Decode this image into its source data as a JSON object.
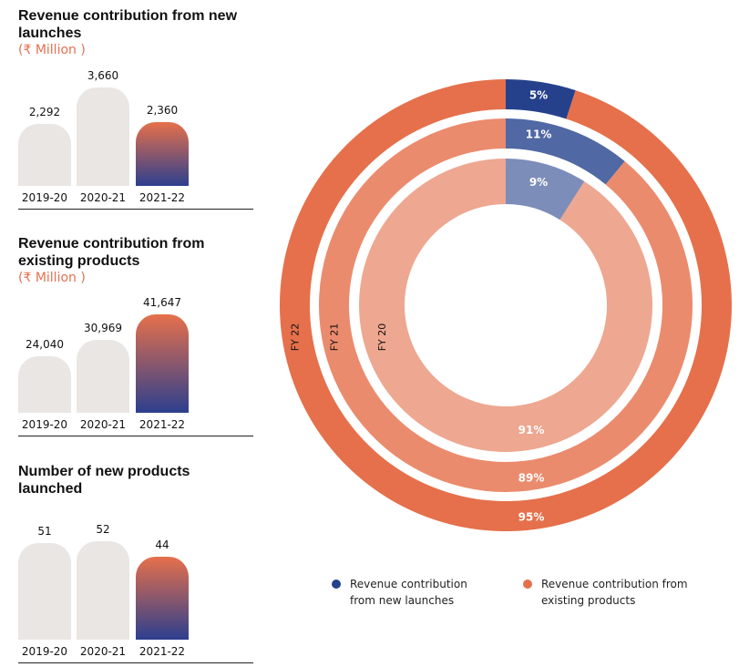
{
  "chart_data": [
    {
      "type": "bar",
      "title": "Revenue contribution from new launches",
      "unit": "(₹ Million )",
      "categories": [
        "2019-20",
        "2020-21",
        "2021-22"
      ],
      "values": [
        2292,
        3660,
        2360
      ],
      "labels": [
        "2,292",
        "3,660",
        "2,360"
      ],
      "highlight": 2
    },
    {
      "type": "bar",
      "title": "Revenue contribution from existing products",
      "unit": "(₹ Million )",
      "categories": [
        "2019-20",
        "2020-21",
        "2021-22"
      ],
      "values": [
        24040,
        30969,
        41647
      ],
      "labels": [
        "24,040",
        "30,969",
        "41,647"
      ],
      "highlight": 2
    },
    {
      "type": "bar",
      "title": "Number of new products launched",
      "unit": "",
      "categories": [
        "2019-20",
        "2020-21",
        "2021-22"
      ],
      "values": [
        51,
        52,
        44
      ],
      "labels": [
        "51",
        "52",
        "44"
      ],
      "highlight": 2
    },
    {
      "type": "pie",
      "subtype": "nested-donut",
      "rings": [
        {
          "name": "FY 22",
          "new": 5,
          "existing": 95,
          "new_label": "5%",
          "existing_label": "95%",
          "colors": [
            "#26418c",
            "#e5704b"
          ]
        },
        {
          "name": "FY 21",
          "new": 11,
          "existing": 89,
          "new_label": "11%",
          "existing_label": "89%",
          "colors": [
            "#5068a3",
            "#eb8b6d"
          ]
        },
        {
          "name": "FY 20",
          "new": 9,
          "existing": 91,
          "new_label": "9%",
          "existing_label": "91%",
          "colors": [
            "#7d8dba",
            "#eea790"
          ]
        }
      ],
      "legend": [
        {
          "label": "Revenue contribution from new launches",
          "color": "#26418c"
        },
        {
          "label": "Revenue contribution from existing products",
          "color": "#e5704b"
        }
      ]
    }
  ]
}
